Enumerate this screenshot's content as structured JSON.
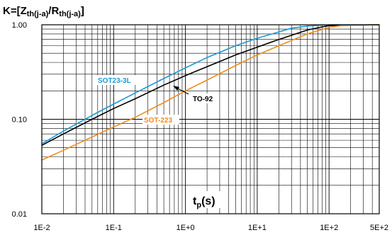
{
  "chart_data": {
    "type": "line",
    "title": {
      "main": "K=[Z",
      "sub1": "th(j-a)",
      "mid": "/R",
      "sub2": "th(j-a)",
      "end": "]"
    },
    "xlabel": {
      "main": "t",
      "sub": "p",
      "end": "(s)"
    },
    "x_scale": "log",
    "y_scale": "log",
    "xlim": [
      0.01,
      500
    ],
    "ylim": [
      0.01,
      1
    ],
    "x_ticks": [
      {
        "value": 0.01,
        "label": "1E-2"
      },
      {
        "value": 0.1,
        "label": "1E-1"
      },
      {
        "value": 1,
        "label": "1E+0"
      },
      {
        "value": 10,
        "label": "1E+1"
      },
      {
        "value": 100,
        "label": "1E+2"
      },
      {
        "value": 500,
        "label": "5E+2"
      }
    ],
    "y_ticks": [
      {
        "value": 0.01,
        "label": "0.01"
      },
      {
        "value": 0.1,
        "label": "0.10"
      },
      {
        "value": 1,
        "label": "1.00"
      }
    ],
    "grid": true,
    "series": [
      {
        "name": "SOT23-3L",
        "color": "#1a9ad6",
        "x": [
          0.01,
          0.02,
          0.05,
          0.1,
          0.2,
          0.5,
          1,
          2,
          5,
          10,
          20,
          30,
          50,
          100,
          500
        ],
        "y": [
          0.055,
          0.075,
          0.11,
          0.145,
          0.19,
          0.27,
          0.35,
          0.45,
          0.6,
          0.72,
          0.84,
          0.92,
          0.97,
          1.0,
          1.0
        ]
      },
      {
        "name": "TO-92",
        "color": "#000000",
        "x": [
          0.01,
          0.02,
          0.05,
          0.1,
          0.2,
          0.5,
          1,
          2,
          5,
          10,
          20,
          50,
          80,
          100,
          500
        ],
        "y": [
          0.053,
          0.07,
          0.1,
          0.13,
          0.165,
          0.23,
          0.29,
          0.36,
          0.48,
          0.58,
          0.7,
          0.88,
          0.95,
          0.98,
          1.0
        ]
      },
      {
        "name": "SOT-223",
        "color": "#f08c1e",
        "x": [
          0.01,
          0.02,
          0.05,
          0.1,
          0.2,
          0.5,
          1,
          2,
          5,
          10,
          20,
          50,
          100,
          150,
          500
        ],
        "y": [
          0.037,
          0.047,
          0.065,
          0.083,
          0.105,
          0.15,
          0.2,
          0.26,
          0.37,
          0.48,
          0.6,
          0.8,
          0.94,
          0.98,
          1.0
        ]
      }
    ]
  }
}
